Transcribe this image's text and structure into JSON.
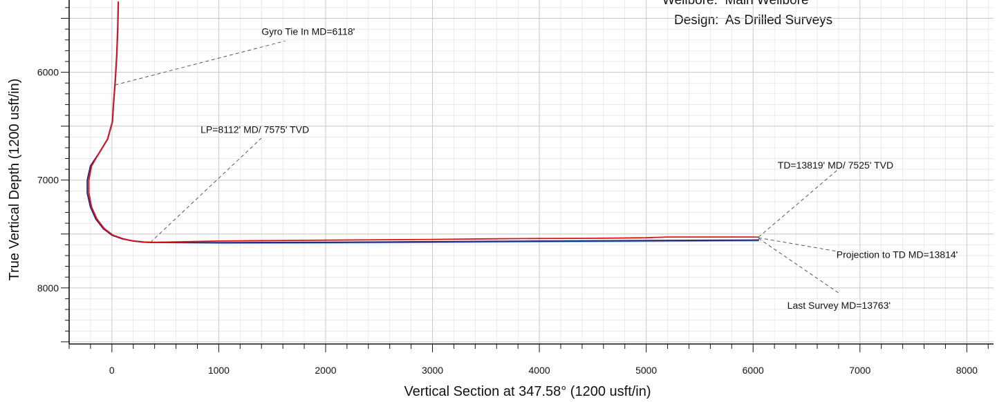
{
  "header": {
    "wellbore": "Wellbore:  Main Wellbore",
    "design": "Design:  As Drilled Surveys"
  },
  "chart_data": {
    "type": "line",
    "xlabel": "Vertical Section at 347.58° (1200 usft/in)",
    "ylabel": "True Vertical Depth (1200 usft/in)",
    "xlim": [
      -400,
      8250
    ],
    "ylim": [
      5330,
      8520
    ],
    "y_inverted": true,
    "grid": true,
    "x_ticks": [
      0,
      1000,
      2000,
      3000,
      4000,
      5000,
      6000,
      7000,
      8000
    ],
    "y_ticks": [
      6000,
      7000,
      8000
    ],
    "x_tick_labels": [
      "0",
      "1000",
      "2000",
      "3000",
      "4000",
      "5000",
      "6000",
      "7000",
      "8000"
    ],
    "y_tick_labels": [
      "6000",
      "7000",
      "8000"
    ],
    "colors": {
      "plan": "#2e2a7a",
      "actual": "#e0141a",
      "offset": "#6fb8e6",
      "leader": "#555555",
      "grid": "#c8c8c8"
    },
    "series": [
      {
        "key": "plan",
        "x": [
          60,
          55,
          45,
          30,
          15,
          5,
          -40,
          -120,
          -200,
          -230,
          -230,
          -200,
          -150,
          -80,
          0,
          100,
          200,
          300,
          360,
          1000,
          2000,
          3000,
          4000,
          5000,
          6000,
          6050
        ],
        "y": [
          5350,
          5600,
          5850,
          6100,
          6300,
          6460,
          6620,
          6750,
          6870,
          7000,
          7120,
          7250,
          7360,
          7450,
          7510,
          7545,
          7565,
          7575,
          7578,
          7580,
          7578,
          7572,
          7566,
          7562,
          7557,
          7556
        ]
      },
      {
        "key": "actual",
        "x": [
          60,
          55,
          45,
          30,
          15,
          5,
          -40,
          -120,
          -190,
          -215,
          -215,
          -190,
          -140,
          -70,
          10,
          110,
          200,
          300,
          360,
          1000,
          1600,
          2000,
          3000,
          3500,
          4000,
          4500,
          5000,
          5200,
          6000,
          6050
        ],
        "y": [
          5350,
          5600,
          5850,
          6100,
          6300,
          6460,
          6620,
          6750,
          6870,
          7000,
          7120,
          7250,
          7360,
          7450,
          7510,
          7545,
          7565,
          7575,
          7578,
          7565,
          7560,
          7557,
          7550,
          7545,
          7542,
          7540,
          7535,
          7528,
          7528,
          7530
        ]
      },
      {
        "key": "offset",
        "x": [
          360,
          1000,
          2000,
          3000,
          4000,
          5000,
          6050
        ],
        "y": [
          7578,
          7586,
          7585,
          7580,
          7574,
          7570,
          7565
        ]
      }
    ],
    "annotations": [
      {
        "text": "Gyro Tie In MD=6118'",
        "point": [
          30,
          6118
        ],
        "label_at": [
          1400,
          5620
        ],
        "label_anchor": [
          1620,
          5710
        ]
      },
      {
        "text": "LP=8112' MD/ 7575' TVD",
        "point": [
          360,
          7578
        ],
        "label_at": [
          830,
          6530
        ],
        "label_anchor": [
          1400,
          6610
        ]
      },
      {
        "text": "TD=13819' MD/ 7525' TVD",
        "point": [
          6050,
          7530
        ],
        "label_at": [
          6230,
          6860
        ],
        "label_anchor": [
          6820,
          6880
        ]
      },
      {
        "text": "Projection to TD MD=13814'",
        "point": [
          6050,
          7535
        ],
        "label_at": [
          6780,
          7690
        ],
        "label_anchor": [
          6780,
          7660
        ]
      },
      {
        "text": "Last Survey MD=13763'",
        "point": [
          6050,
          7540
        ],
        "label_at": [
          6320,
          8160
        ],
        "label_anchor": [
          6820,
          8060
        ]
      }
    ]
  }
}
